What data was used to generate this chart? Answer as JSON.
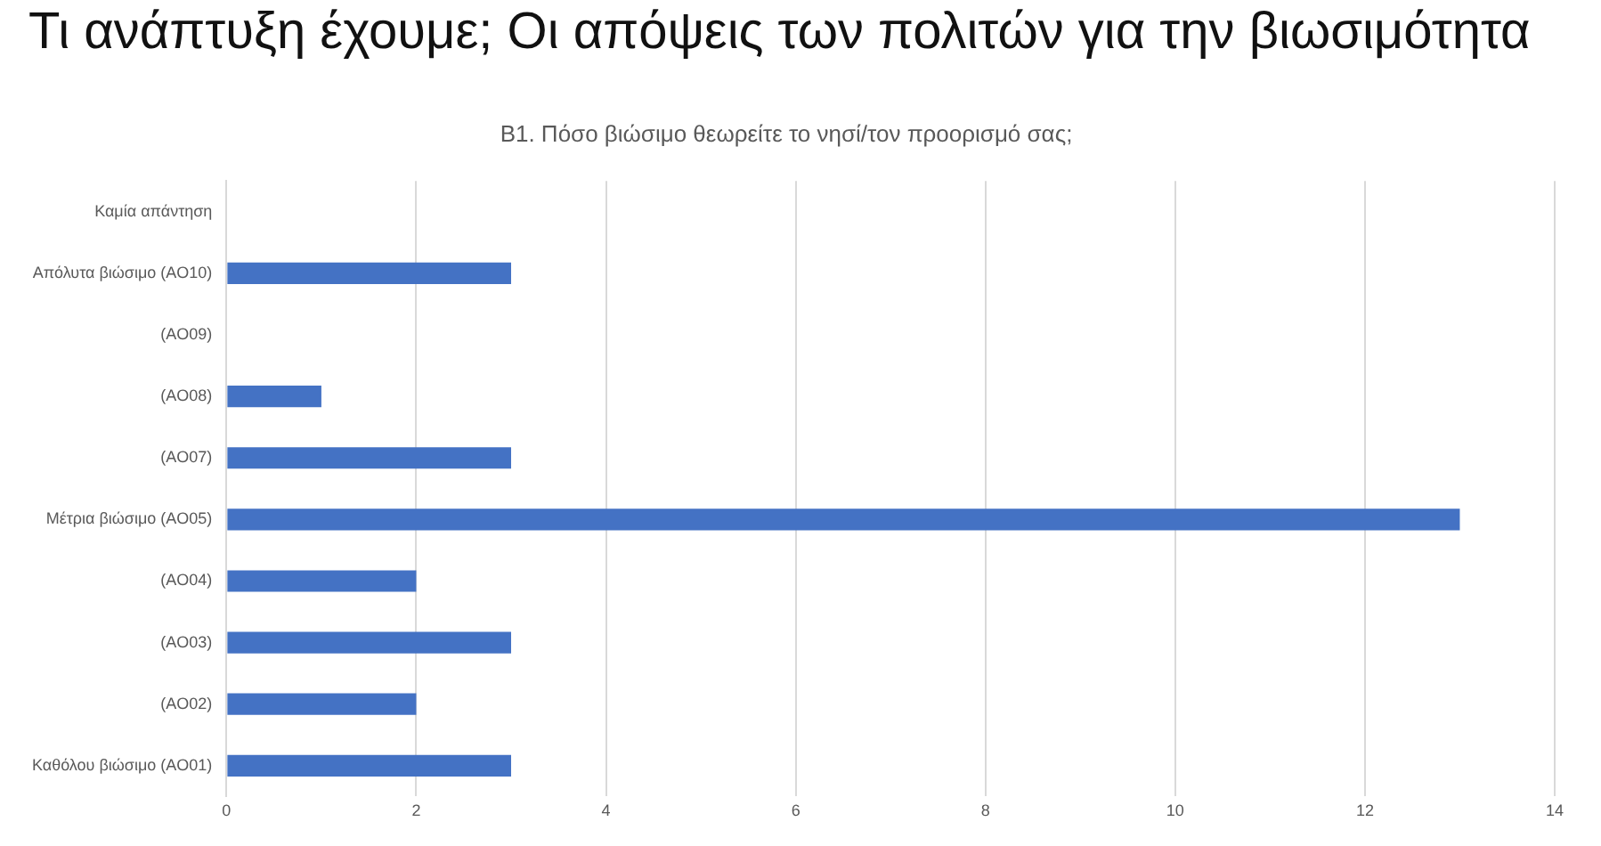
{
  "chart_data": {
    "type": "bar",
    "orientation": "horizontal",
    "title": "Τι ανάπτυξη έχουμε; Οι απόψεις των πολιτών για την βιωσιμότητα",
    "subtitle": "B1. Πόσο βιώσιμο θεωρείτε το νησί/τον προορισμό σας;",
    "categories": [
      "Καμία απάντηση",
      "Απόλυτα βιώσιμο (AO10)",
      "(AO09)",
      "(AO08)",
      "(AO07)",
      "Μέτρια βιώσιμο (AO05)",
      "(AO04)",
      "(AO03)",
      "(AO02)",
      "Καθόλου βιώσιμο (AO01)"
    ],
    "values": [
      null,
      3,
      null,
      1,
      3,
      13,
      2,
      3,
      2,
      3
    ],
    "color": "#4472c4",
    "xlim": [
      0,
      14
    ],
    "xticks": [
      0,
      2,
      4,
      6,
      8,
      10,
      12,
      14
    ],
    "grid": "x",
    "legend": false
  }
}
